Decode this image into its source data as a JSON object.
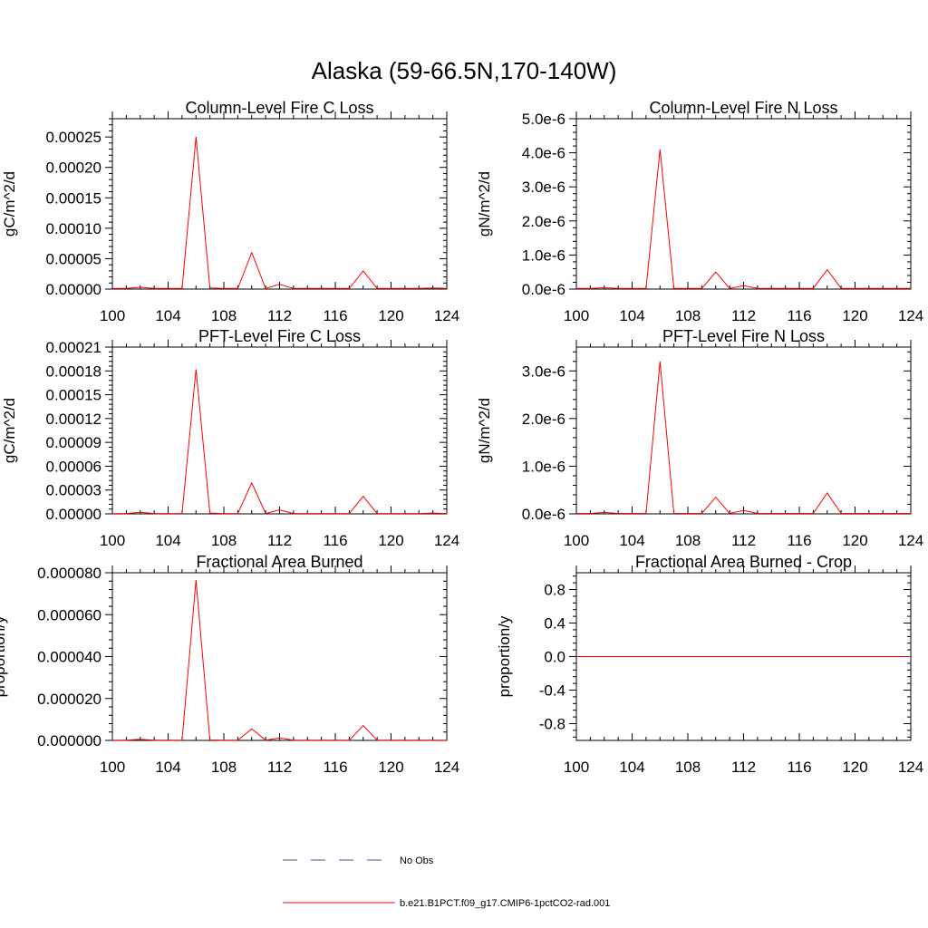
{
  "figure": {
    "title": "Alaska (59-66.5N,170-140W)"
  },
  "legend": {
    "entries": [
      {
        "label": "No Obs",
        "style": "dashed",
        "color": "#4b4b9b"
      },
      {
        "label": "b.e21.B1PCT.f09_g17.CMIP6-1pctCO2-rad.001",
        "style": "solid",
        "color": "#ff0000"
      }
    ]
  },
  "chart_data": [
    {
      "type": "line",
      "title": "Column-Level Fire C Loss",
      "ylabel": "gC/m^2/d",
      "xlim": [
        100,
        124
      ],
      "ylim": [
        0,
        0.00028
      ],
      "xticks": [
        100,
        104,
        108,
        112,
        116,
        120,
        124
      ],
      "xtick_labels": [
        "100",
        "104",
        "108",
        "112",
        "116",
        "120",
        "124"
      ],
      "yticks": [
        0,
        5e-05,
        0.0001,
        0.00015,
        0.0002,
        0.00025
      ],
      "ytick_labels": [
        "0.00000",
        "0.00005",
        "0.00010",
        "0.00015",
        "0.00020",
        "0.00025"
      ],
      "series": [
        {
          "color": "#ff0000",
          "x": [
            100,
            101,
            102,
            103,
            104,
            105,
            106,
            107,
            108,
            109,
            110,
            111,
            112,
            113,
            114,
            115,
            116,
            117,
            118,
            119,
            120,
            121,
            122,
            123,
            124
          ],
          "values": [
            1e-06,
            1e-06,
            3e-06,
            1e-06,
            1e-06,
            1e-06,
            0.00025,
            2e-06,
            1e-06,
            1e-06,
            6e-05,
            1e-06,
            8e-06,
            1e-06,
            1e-06,
            1e-06,
            1e-06,
            1e-06,
            3e-05,
            1e-06,
            1e-06,
            1e-06,
            1e-06,
            2e-06,
            1e-06
          ]
        }
      ]
    },
    {
      "type": "line",
      "title": "Column-Level Fire N Loss",
      "ylabel": "gN/m^2/d",
      "xlim": [
        100,
        124
      ],
      "ylim": [
        0,
        5e-06
      ],
      "xticks": [
        100,
        104,
        108,
        112,
        116,
        120,
        124
      ],
      "xtick_labels": [
        "100",
        "104",
        "108",
        "112",
        "116",
        "120",
        "124"
      ],
      "yticks": [
        0,
        1e-06,
        2e-06,
        3e-06,
        4e-06,
        5e-06
      ],
      "ytick_labels": [
        "0.0e-6",
        "1.0e-6",
        "2.0e-6",
        "3.0e-6",
        "4.0e-6",
        "5.0e-6"
      ],
      "series": [
        {
          "color": "#ff0000",
          "x": [
            100,
            101,
            102,
            103,
            104,
            105,
            106,
            107,
            108,
            109,
            110,
            111,
            112,
            113,
            114,
            115,
            116,
            117,
            118,
            119,
            120,
            121,
            122,
            123,
            124
          ],
          "values": [
            2e-08,
            2e-08,
            4e-08,
            2e-08,
            2e-08,
            2e-08,
            4.1e-06,
            2e-08,
            2e-08,
            2e-08,
            5e-07,
            2e-08,
            1e-07,
            2e-08,
            2e-08,
            2e-08,
            2e-08,
            2e-08,
            5.7e-07,
            2e-08,
            2e-08,
            2e-08,
            2e-08,
            2e-08,
            2e-08
          ]
        }
      ]
    },
    {
      "type": "line",
      "title": "PFT-Level Fire C Loss",
      "ylabel": "gC/m^2/d",
      "xlim": [
        100,
        124
      ],
      "ylim": [
        0,
        0.00021
      ],
      "xticks": [
        100,
        104,
        108,
        112,
        116,
        120,
        124
      ],
      "xtick_labels": [
        "100",
        "104",
        "108",
        "112",
        "116",
        "120",
        "124"
      ],
      "yticks": [
        0,
        3e-05,
        6e-05,
        9e-05,
        0.00012,
        0.00015,
        0.00018,
        0.00021
      ],
      "ytick_labels": [
        "0.00000",
        "0.00003",
        "0.00006",
        "0.00009",
        "0.00012",
        "0.00015",
        "0.00018",
        "0.00021"
      ],
      "series": [
        {
          "color": "#ff0000",
          "x": [
            100,
            101,
            102,
            103,
            104,
            105,
            106,
            107,
            108,
            109,
            110,
            111,
            112,
            113,
            114,
            115,
            116,
            117,
            118,
            119,
            120,
            121,
            122,
            123,
            124
          ],
          "values": [
            5e-07,
            5e-07,
            2e-06,
            5e-07,
            5e-07,
            5e-07,
            0.000182,
            1e-06,
            5e-07,
            5e-07,
            3.9e-05,
            5e-07,
            5e-06,
            5e-07,
            5e-07,
            5e-07,
            5e-07,
            5e-07,
            2.2e-05,
            5e-07,
            5e-07,
            5e-07,
            5e-07,
            1e-06,
            5e-07
          ]
        }
      ]
    },
    {
      "type": "line",
      "title": "PFT-Level Fire N Loss",
      "ylabel": "gN/m^2/d",
      "xlim": [
        100,
        124
      ],
      "ylim": [
        0,
        3.5e-06
      ],
      "xticks": [
        100,
        104,
        108,
        112,
        116,
        120,
        124
      ],
      "xtick_labels": [
        "100",
        "104",
        "108",
        "112",
        "116",
        "120",
        "124"
      ],
      "yticks": [
        0,
        1e-06,
        2e-06,
        3e-06
      ],
      "ytick_labels": [
        "0.0e-6",
        "1.0e-6",
        "2.0e-6",
        "3.0e-6"
      ],
      "series": [
        {
          "color": "#ff0000",
          "x": [
            100,
            101,
            102,
            103,
            104,
            105,
            106,
            107,
            108,
            109,
            110,
            111,
            112,
            113,
            114,
            115,
            116,
            117,
            118,
            119,
            120,
            121,
            122,
            123,
            124
          ],
          "values": [
            1e-08,
            1e-08,
            3e-08,
            1e-08,
            1e-08,
            1e-08,
            3.2e-06,
            1e-08,
            1e-08,
            1e-08,
            3.5e-07,
            1e-08,
            7e-08,
            1e-08,
            1e-08,
            1e-08,
            1e-08,
            1e-08,
            4.4e-07,
            1e-08,
            1e-08,
            1e-08,
            1e-08,
            1e-08,
            1e-08
          ]
        }
      ]
    },
    {
      "type": "line",
      "title": "Fractional Area Burned",
      "ylabel": "proportion/y",
      "xlim": [
        100,
        124
      ],
      "ylim": [
        0,
        8e-05
      ],
      "xticks": [
        100,
        104,
        108,
        112,
        116,
        120,
        124
      ],
      "xtick_labels": [
        "100",
        "104",
        "108",
        "112",
        "116",
        "120",
        "124"
      ],
      "yticks": [
        0,
        2e-05,
        4e-05,
        6e-05,
        8e-05
      ],
      "ytick_labels": [
        "0.000000",
        "0.000020",
        "0.000040",
        "0.000060",
        "0.000080"
      ],
      "series": [
        {
          "color": "#ff0000",
          "x": [
            100,
            101,
            102,
            103,
            104,
            105,
            106,
            107,
            108,
            109,
            110,
            111,
            112,
            113,
            114,
            115,
            116,
            117,
            118,
            119,
            120,
            121,
            122,
            123,
            124
          ],
          "values": [
            1e-07,
            1e-07,
            5e-07,
            1e-07,
            1e-07,
            1e-07,
            7.65e-05,
            2e-07,
            1e-07,
            1e-07,
            5.5e-06,
            1e-07,
            1.2e-06,
            1e-07,
            1e-07,
            1e-07,
            1e-07,
            1e-07,
            7.1e-06,
            1e-07,
            1e-07,
            1e-07,
            1e-07,
            1e-07,
            1e-07
          ]
        }
      ]
    },
    {
      "type": "line",
      "title": "Fractional Area Burned - Crop",
      "ylabel": "proportion/y",
      "xlim": [
        100,
        124
      ],
      "ylim": [
        -1,
        1
      ],
      "xticks": [
        100,
        104,
        108,
        112,
        116,
        120,
        124
      ],
      "xtick_labels": [
        "100",
        "104",
        "108",
        "112",
        "116",
        "120",
        "124"
      ],
      "yticks": [
        -0.8,
        -0.4,
        0,
        0.4,
        0.8
      ],
      "ytick_labels": [
        "-0.8",
        "-0.4",
        "0.0",
        "0.4",
        "0.8"
      ],
      "series": [
        {
          "color": "#ff0000",
          "x": [
            100,
            101,
            102,
            103,
            104,
            105,
            106,
            107,
            108,
            109,
            110,
            111,
            112,
            113,
            114,
            115,
            116,
            117,
            118,
            119,
            120,
            121,
            122,
            123,
            124
          ],
          "values": [
            0,
            0,
            0,
            0,
            0,
            0,
            0,
            0,
            0,
            0,
            0,
            0,
            0,
            0,
            0,
            0,
            0,
            0,
            0,
            0,
            0,
            0,
            0,
            0,
            0
          ]
        }
      ]
    }
  ]
}
